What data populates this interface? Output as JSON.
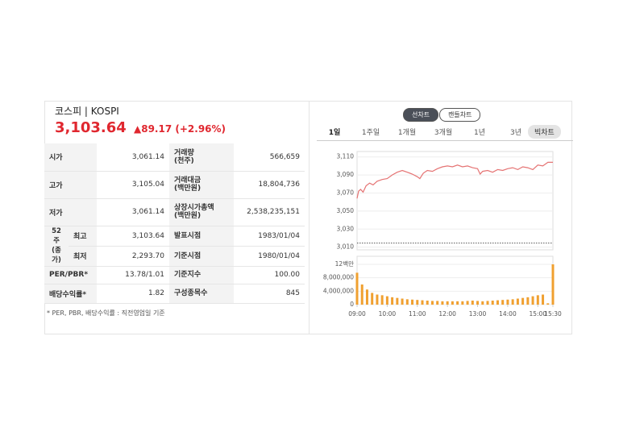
{
  "header": {
    "title": "코스피 | KOSPI",
    "price": "3,103.64",
    "change": "▲89.17",
    "change_pct": "(+2.96%)"
  },
  "table": {
    "group_label": [
      "52주",
      "(종가)"
    ],
    "rows": [
      {
        "label": "시가",
        "value": "3,061.14",
        "label2": [
          "거래량",
          "(천주)"
        ],
        "value2": "566,659"
      },
      {
        "label": "고가",
        "value": "3,105.04",
        "label2": [
          "거래대금",
          "(백만원)"
        ],
        "value2": "18,804,736"
      },
      {
        "label": "저가",
        "value": "3,061.14",
        "label2": [
          "상장시가총액",
          "(백만원)"
        ],
        "value2": "2,538,235,151"
      },
      {
        "sublabel": "최고",
        "value": "3,103.64",
        "label2": [
          "발표시점"
        ],
        "value2": "1983/01/04"
      },
      {
        "sublabel": "최저",
        "value": "2,293.70",
        "label2": [
          "기준시점"
        ],
        "value2": "1980/01/04"
      },
      {
        "label": "PER/PBR*",
        "value": "13.78/1.01",
        "label2": [
          "기준지수"
        ],
        "value2": "100.00"
      },
      {
        "label": "배당수익률*",
        "value": "1.82",
        "label2": [
          "구성종목수"
        ],
        "value2": "845"
      }
    ],
    "footnote": "* PER, PBR, 배당수익률 : 직전영업일 기준"
  },
  "toggle": {
    "items": [
      "선차트",
      "캔들차트"
    ],
    "selected": 0
  },
  "tabs": {
    "items": [
      "1일",
      "1주일",
      "1개월",
      "3개월",
      "1년",
      "3년"
    ],
    "selected": 0,
    "big_chart": "빅차트"
  },
  "chart_data": {
    "type": "line",
    "xlim": [
      540,
      930
    ],
    "xticks": [
      {
        "value": 540,
        "label": "09:00"
      },
      {
        "value": 600,
        "label": "10:00"
      },
      {
        "value": 660,
        "label": "11:00"
      },
      {
        "value": 720,
        "label": "12:00"
      },
      {
        "value": 780,
        "label": "13:00"
      },
      {
        "value": 840,
        "label": "14:00"
      },
      {
        "value": 900,
        "label": "15:00"
      },
      {
        "value": 930,
        "label": "15:30"
      }
    ],
    "price": {
      "color": "#e57373",
      "ylim": [
        3007,
        3116
      ],
      "yticks": [
        {
          "value": 3010,
          "label": "3,010"
        },
        {
          "value": 3030,
          "label": "3,030"
        },
        {
          "value": 3050,
          "label": "3,050"
        },
        {
          "value": 3070,
          "label": "3,070"
        },
        {
          "value": 3090,
          "label": "3,090"
        },
        {
          "value": 3110,
          "label": "3,110"
        }
      ],
      "reference": 3014.47,
      "x": [
        540,
        543,
        547,
        552,
        558,
        565,
        572,
        580,
        590,
        600,
        610,
        620,
        630,
        640,
        650,
        660,
        665,
        672,
        680,
        690,
        700,
        710,
        720,
        730,
        740,
        750,
        760,
        770,
        780,
        785,
        790,
        800,
        810,
        820,
        830,
        840,
        850,
        860,
        870,
        880,
        890,
        900,
        910,
        920,
        930
      ],
      "values": [
        3064,
        3072,
        3074,
        3071,
        3078,
        3081,
        3079,
        3083,
        3085,
        3086,
        3090,
        3093,
        3095,
        3093,
        3091,
        3088,
        3086,
        3092,
        3095,
        3094,
        3097,
        3099,
        3100,
        3099,
        3101,
        3099,
        3100,
        3098,
        3097,
        3091,
        3094,
        3095,
        3093,
        3096,
        3095,
        3097,
        3098,
        3096,
        3099,
        3098,
        3096,
        3101,
        3100,
        3104,
        3104
      ]
    },
    "volume": {
      "color": "#f0a030",
      "ylim": [
        0,
        14400000
      ],
      "yticks": [
        0,
        {
          "value": 4000000,
          "label": "4,000,000"
        },
        {
          "value": 8000000,
          "label": "8,000,000"
        },
        {
          "value": 12000000,
          "label": "12백만"
        }
      ],
      "x": [
        540,
        550,
        560,
        570,
        580,
        590,
        600,
        610,
        620,
        630,
        640,
        650,
        660,
        670,
        680,
        690,
        700,
        710,
        720,
        730,
        740,
        750,
        760,
        770,
        780,
        790,
        800,
        810,
        820,
        830,
        840,
        850,
        860,
        870,
        880,
        890,
        900,
        910,
        920,
        930
      ],
      "values": [
        9500000,
        6000000,
        4500000,
        3500000,
        3000000,
        2800000,
        2500000,
        2200000,
        2000000,
        1800000,
        1600000,
        1500000,
        1400000,
        1300000,
        1200000,
        1100000,
        1100000,
        1000000,
        1000000,
        1000000,
        1000000,
        1000000,
        1100000,
        1200000,
        1100000,
        1000000,
        1100000,
        1200000,
        1300000,
        1400000,
        1500000,
        1600000,
        1800000,
        2000000,
        2200000,
        2500000,
        2800000,
        3000000,
        400000,
        12000000
      ]
    }
  }
}
